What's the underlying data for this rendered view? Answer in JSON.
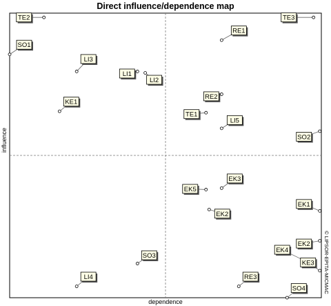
{
  "chart_data": {
    "type": "scatter",
    "title": "Direct influence/dependence map",
    "xlabel": "dependence",
    "ylabel": "influence",
    "watermark": "© LIPSOR-EPITA-MICMAC",
    "grid": "quadrant dashed lines",
    "points": [
      {
        "label": "TE2",
        "x": 0.11,
        "y": 0.985
      },
      {
        "label": "TE3",
        "x": 0.975,
        "y": 0.985
      },
      {
        "label": "RE1",
        "x": 0.68,
        "y": 0.905
      },
      {
        "label": "SO1",
        "x": 0.0,
        "y": 0.855
      },
      {
        "label": "LI3",
        "x": 0.215,
        "y": 0.795
      },
      {
        "label": "LI1",
        "x": 0.41,
        "y": 0.795
      },
      {
        "label": "LI2",
        "x": 0.435,
        "y": 0.79
      },
      {
        "label": "RE2",
        "x": 0.68,
        "y": 0.715
      },
      {
        "label": "KE1",
        "x": 0.16,
        "y": 0.655
      },
      {
        "label": "TE1",
        "x": 0.63,
        "y": 0.65
      },
      {
        "label": "LI5",
        "x": 0.68,
        "y": 0.595
      },
      {
        "label": "SO2",
        "x": 0.995,
        "y": 0.585
      },
      {
        "label": "EK3",
        "x": 0.68,
        "y": 0.385
      },
      {
        "label": "EK5",
        "x": 0.63,
        "y": 0.38
      },
      {
        "label": "EK1",
        "x": 0.995,
        "y": 0.305
      },
      {
        "label": "EK2",
        "x": 0.64,
        "y": 0.31
      },
      {
        "label": "EK2",
        "x": 0.995,
        "y": 0.2
      },
      {
        "label": "SO3",
        "x": 0.41,
        "y": 0.12
      },
      {
        "label": "EK4",
        "x": 0.965,
        "y": 0.12
      },
      {
        "label": "KE3",
        "x": 0.995,
        "y": 0.095
      },
      {
        "label": "LI4",
        "x": 0.215,
        "y": 0.04
      },
      {
        "label": "RE3",
        "x": 0.735,
        "y": 0.04
      },
      {
        "label": "SO4",
        "x": 0.89,
        "y": 0.0
      }
    ]
  }
}
